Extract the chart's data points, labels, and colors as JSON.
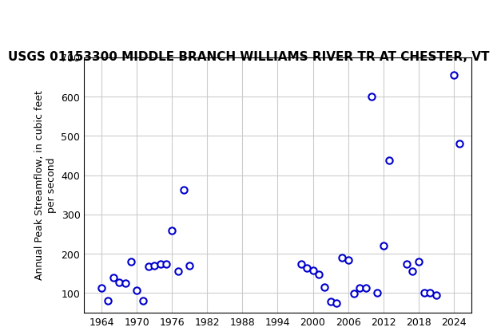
{
  "title": "USGS 01153300 MIDDLE BRANCH WILLIAMS RIVER TR AT CHESTER, VT",
  "ylabel": "Annual Peak Streamflow, in cubic feet\nper second",
  "xlabel": "",
  "xlim": [
    1961,
    2027
  ],
  "ylim": [
    50,
    700
  ],
  "yticks": [
    100,
    200,
    300,
    400,
    500,
    600,
    700
  ],
  "xticks": [
    1964,
    1970,
    1976,
    1982,
    1988,
    1994,
    2000,
    2006,
    2012,
    2018,
    2024
  ],
  "marker_color": "#0000cc",
  "marker_facecolor": "white",
  "marker_size": 6,
  "grid_color": "#cccccc",
  "background_color": "#ffffff",
  "header_color": "#1a6b3c",
  "title_fontsize": 11,
  "ylabel_fontsize": 9,
  "data": [
    [
      1964,
      113
    ],
    [
      1965,
      80
    ],
    [
      1966,
      140
    ],
    [
      1967,
      128
    ],
    [
      1968,
      125
    ],
    [
      1969,
      180
    ],
    [
      1970,
      108
    ],
    [
      1971,
      80
    ],
    [
      1972,
      167
    ],
    [
      1973,
      170
    ],
    [
      1974,
      175
    ],
    [
      1975,
      175
    ],
    [
      1976,
      260
    ],
    [
      1977,
      155
    ],
    [
      1978,
      363
    ],
    [
      1979,
      170
    ],
    [
      1998,
      175
    ],
    [
      1999,
      163
    ],
    [
      2000,
      158
    ],
    [
      2001,
      148
    ],
    [
      2002,
      115
    ],
    [
      2003,
      78
    ],
    [
      2004,
      75
    ],
    [
      2005,
      190
    ],
    [
      2006,
      185
    ],
    [
      2007,
      98
    ],
    [
      2008,
      113
    ],
    [
      2009,
      113
    ],
    [
      2010,
      600
    ],
    [
      2011,
      100
    ],
    [
      2012,
      220
    ],
    [
      2013,
      438
    ],
    [
      2016,
      175
    ],
    [
      2017,
      155
    ],
    [
      2018,
      180
    ],
    [
      2019,
      100
    ],
    [
      2020,
      100
    ],
    [
      2021,
      95
    ],
    [
      2024,
      655
    ],
    [
      2025,
      480
    ]
  ]
}
